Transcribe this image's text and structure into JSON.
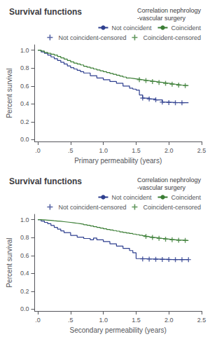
{
  "chart_data": [
    {
      "type": "step",
      "title": "Survival functions",
      "xlabel": "Primary permeability (years)",
      "ylabel": "Percent survival",
      "xlim": [
        -0.05,
        2.5
      ],
      "ylim": [
        -0.02,
        1.06
      ],
      "xticks": [
        {
          "value": 0.0,
          "label": ".0"
        },
        {
          "value": 0.5,
          "label": ".5"
        },
        {
          "value": 1.0,
          "label": "1.0"
        },
        1.5,
        {
          "value": 2.0,
          "label": "2.0"
        },
        2.5
      ],
      "yticks": [
        {
          "value": 0.0,
          "label": "0.0"
        },
        0.2,
        0.4,
        0.6,
        0.8,
        {
          "value": 1.0,
          "label": "1.0"
        }
      ],
      "grid": false,
      "legend": "upper right",
      "legend_title": "Correlation nephrology\n-vascular surgery",
      "series": [
        {
          "name": "Not coincident",
          "type": "step",
          "color": "#2e3f8f",
          "x": [
            0.0,
            0.05,
            0.1,
            0.15,
            0.2,
            0.25,
            0.3,
            0.35,
            0.4,
            0.45,
            0.5,
            0.55,
            0.6,
            0.65,
            0.7,
            0.8,
            0.9,
            1.0,
            1.1,
            1.2,
            1.3,
            1.4,
            1.45,
            1.5,
            1.55,
            1.6,
            1.7,
            1.8,
            1.9,
            2.0,
            2.1,
            2.2,
            2.3
          ],
          "values": [
            1.0,
            0.98,
            0.965,
            0.945,
            0.925,
            0.905,
            0.885,
            0.865,
            0.845,
            0.825,
            0.805,
            0.79,
            0.775,
            0.76,
            0.745,
            0.715,
            0.69,
            0.67,
            0.65,
            0.63,
            0.6,
            0.575,
            0.565,
            0.555,
            0.5,
            0.465,
            0.455,
            0.445,
            0.42,
            0.415,
            0.413,
            0.413,
            0.413
          ]
        },
        {
          "name": "Coincident",
          "type": "step",
          "color": "#3a7d34",
          "x": [
            0.0,
            0.05,
            0.1,
            0.15,
            0.2,
            0.25,
            0.3,
            0.35,
            0.4,
            0.45,
            0.5,
            0.55,
            0.6,
            0.65,
            0.7,
            0.75,
            0.8,
            0.85,
            0.9,
            0.95,
            1.0,
            1.05,
            1.1,
            1.15,
            1.2,
            1.25,
            1.3,
            1.35,
            1.4,
            1.45,
            1.5,
            1.55,
            1.6,
            1.65,
            1.7,
            1.75,
            1.8,
            1.85,
            1.9,
            1.95,
            2.0,
            2.05,
            2.1,
            2.15,
            2.2,
            2.25,
            2.3
          ],
          "values": [
            1.0,
            0.99,
            0.975,
            0.965,
            0.955,
            0.945,
            0.93,
            0.915,
            0.9,
            0.885,
            0.87,
            0.855,
            0.845,
            0.835,
            0.82,
            0.81,
            0.8,
            0.79,
            0.78,
            0.77,
            0.76,
            0.75,
            0.74,
            0.73,
            0.72,
            0.71,
            0.7,
            0.69,
            0.685,
            0.68,
            0.675,
            0.67,
            0.665,
            0.66,
            0.655,
            0.65,
            0.645,
            0.64,
            0.635,
            0.63,
            0.625,
            0.62,
            0.615,
            0.61,
            0.607,
            0.605,
            0.602
          ]
        },
        {
          "name": "Not coincident-censored",
          "type": "scatter",
          "marker": "+",
          "color": "#2e3f8f",
          "x": [
            1.6,
            1.7,
            1.8,
            1.9,
            2.0,
            2.1,
            2.2
          ],
          "values": [
            0.465,
            0.455,
            0.445,
            0.42,
            0.415,
            0.413,
            0.413
          ]
        },
        {
          "name": "Coincident-censored",
          "type": "scatter",
          "marker": "+",
          "color": "#3a7d34",
          "x": [
            1.55,
            1.65,
            1.75,
            1.85,
            1.95,
            2.05,
            2.15,
            2.25
          ],
          "values": [
            0.67,
            0.66,
            0.65,
            0.64,
            0.63,
            0.62,
            0.61,
            0.605
          ]
        }
      ]
    },
    {
      "type": "step",
      "title": "Survival functions",
      "xlabel": "Secondary permeability (years)",
      "ylabel": "Percent survival",
      "xlim": [
        -0.05,
        2.5
      ],
      "ylim": [
        -0.02,
        1.06
      ],
      "xticks": [
        {
          "value": 0.0,
          "label": ".0"
        },
        {
          "value": 0.5,
          "label": ".5"
        },
        {
          "value": 1.0,
          "label": "1.0"
        },
        1.5,
        {
          "value": 2.0,
          "label": "2.0"
        },
        2.5
      ],
      "yticks": [
        {
          "value": 0.0,
          "label": "0.0"
        },
        0.2,
        0.4,
        0.6,
        0.8,
        {
          "value": 1.0,
          "label": "1.0"
        }
      ],
      "grid": false,
      "legend": "upper right",
      "legend_title": "Correlation nephrology\n-vascular surgery",
      "series": [
        {
          "name": "Not coincident",
          "type": "step",
          "color": "#2e3f8f",
          "x": [
            0.0,
            0.05,
            0.1,
            0.15,
            0.2,
            0.25,
            0.3,
            0.35,
            0.4,
            0.5,
            0.6,
            0.7,
            0.8,
            0.85,
            0.9,
            1.0,
            1.1,
            1.2,
            1.3,
            1.4,
            1.45,
            1.5,
            1.6,
            1.7,
            1.8,
            1.9,
            2.0,
            2.1,
            2.2,
            2.3
          ],
          "values": [
            1.0,
            0.985,
            0.97,
            0.955,
            0.935,
            0.915,
            0.895,
            0.875,
            0.855,
            0.825,
            0.805,
            0.79,
            0.775,
            0.795,
            0.775,
            0.755,
            0.73,
            0.705,
            0.68,
            0.655,
            0.63,
            0.565,
            0.562,
            0.56,
            0.558,
            0.556,
            0.555,
            0.554,
            0.554,
            0.554
          ]
        },
        {
          "name": "Coincident",
          "type": "step",
          "color": "#3a7d34",
          "x": [
            0.0,
            0.05,
            0.1,
            0.15,
            0.2,
            0.25,
            0.3,
            0.35,
            0.4,
            0.45,
            0.5,
            0.55,
            0.6,
            0.65,
            0.7,
            0.75,
            0.8,
            0.85,
            0.9,
            0.95,
            1.0,
            1.05,
            1.1,
            1.15,
            1.2,
            1.25,
            1.3,
            1.35,
            1.4,
            1.45,
            1.5,
            1.55,
            1.6,
            1.65,
            1.7,
            1.75,
            1.8,
            1.85,
            1.9,
            1.95,
            2.0,
            2.05,
            2.1,
            2.15,
            2.2,
            2.25,
            2.3
          ],
          "values": [
            1.0,
            0.998,
            0.995,
            0.992,
            0.988,
            0.985,
            0.982,
            0.978,
            0.974,
            0.97,
            0.965,
            0.96,
            0.955,
            0.95,
            0.944,
            0.937,
            0.93,
            0.922,
            0.915,
            0.907,
            0.899,
            0.891,
            0.885,
            0.878,
            0.872,
            0.864,
            0.857,
            0.851,
            0.845,
            0.839,
            0.833,
            0.826,
            0.82,
            0.813,
            0.807,
            0.801,
            0.796,
            0.791,
            0.787,
            0.783,
            0.779,
            0.776,
            0.773,
            0.771,
            0.769,
            0.768,
            0.767
          ]
        },
        {
          "name": "Not coincident-censored",
          "type": "scatter",
          "marker": "+",
          "color": "#2e3f8f",
          "x": [
            1.6,
            1.7,
            1.8,
            1.9,
            2.0,
            2.1,
            2.2,
            2.3
          ],
          "values": [
            0.562,
            0.56,
            0.558,
            0.556,
            0.555,
            0.554,
            0.554,
            0.554
          ]
        },
        {
          "name": "Coincident-censored",
          "type": "scatter",
          "marker": "+",
          "color": "#3a7d34",
          "x": [
            1.65,
            1.75,
            1.85,
            1.95,
            2.05,
            2.15,
            2.25
          ],
          "values": [
            0.813,
            0.801,
            0.791,
            0.783,
            0.776,
            0.771,
            0.768
          ]
        }
      ]
    }
  ]
}
